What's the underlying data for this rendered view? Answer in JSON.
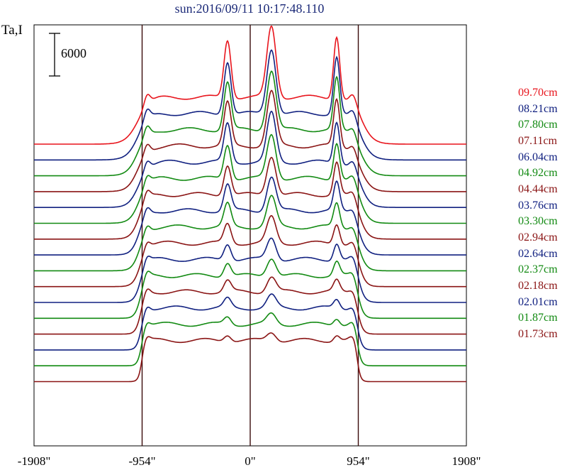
{
  "header": {
    "title": "sun:2016/09/11 10:17:48.110"
  },
  "chart_data": {
    "type": "line",
    "ylabel": "Ta,I",
    "scale_bar": {
      "value": 6000,
      "label": "6000"
    },
    "xlim": [
      -1908,
      1908
    ],
    "x_ticks": [
      {
        "value": -1908,
        "label": "-1908\""
      },
      {
        "value": -954,
        "label": "-954\""
      },
      {
        "value": 0,
        "label": "0\""
      },
      {
        "value": 954,
        "label": "954\""
      },
      {
        "value": 1908,
        "label": "1908\""
      }
    ],
    "vertical_lines": [
      -954,
      0,
      954
    ],
    "colors": {
      "red": "#e8141c",
      "blue": "#102080",
      "green": "#128a12",
      "maroon": "#8a1414"
    },
    "series": [
      {
        "name": "09.70cm",
        "color": "#e8141c"
      },
      {
        "name": "08.21cm",
        "color": "#102080"
      },
      {
        "name": "07.80cm",
        "color": "#128a12"
      },
      {
        "name": "07.11cm",
        "color": "#8a1414"
      },
      {
        "name": "06.04cm",
        "color": "#102080"
      },
      {
        "name": "04.92cm",
        "color": "#128a12"
      },
      {
        "name": "04.44cm",
        "color": "#8a1414"
      },
      {
        "name": "03.76cm",
        "color": "#102080"
      },
      {
        "name": "03.30cm",
        "color": "#128a12"
      },
      {
        "name": "02.94cm",
        "color": "#8a1414"
      },
      {
        "name": "02.64cm",
        "color": "#102080"
      },
      {
        "name": "02.37cm",
        "color": "#128a12"
      },
      {
        "name": "02.18cm",
        "color": "#8a1414"
      },
      {
        "name": "02.01cm",
        "color": "#102080"
      },
      {
        "name": "01.87cm",
        "color": "#128a12"
      },
      {
        "name": "01.73cm",
        "color": "#8a1414"
      }
    ]
  }
}
